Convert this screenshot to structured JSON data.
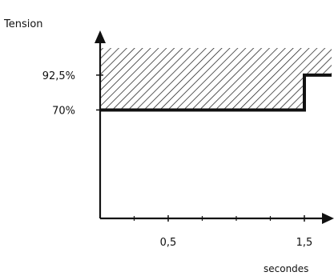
{
  "chart_data": {
    "type": "line",
    "title": "",
    "ylabel": "Tension",
    "xlabel": "secondes",
    "x_tick_labels": [
      {
        "value": 0.5,
        "label": "0,5"
      },
      {
        "value": 1.5,
        "label": "1,5"
      }
    ],
    "y_tick_labels": [
      {
        "value": 92.5,
        "label": "92,5%"
      },
      {
        "value": 70,
        "label": "70%"
      }
    ],
    "xlim": [
      0,
      1.7
    ],
    "ylim": [
      0,
      110
    ],
    "series": [
      {
        "x": [
          0,
          1.5,
          1.5,
          1.7
        ],
        "values": [
          70,
          70,
          92.5,
          92.5
        ]
      }
    ],
    "hatched_region": {
      "x": [
        0,
        1.5,
        1.5,
        1.7,
        1.7,
        0
      ],
      "values": [
        70,
        70,
        92.5,
        92.5,
        110,
        110
      ]
    },
    "grid": false,
    "legend": "none",
    "colors": {
      "line": "#111111",
      "hatch": "#111111",
      "background": "#ffffff"
    }
  }
}
